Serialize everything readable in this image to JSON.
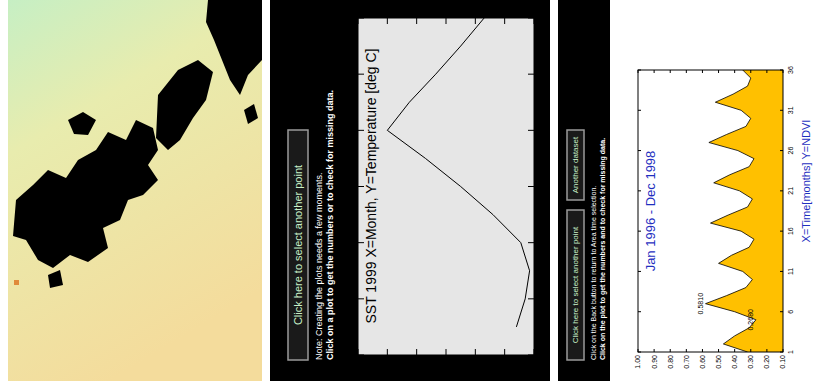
{
  "chart_data": [
    {
      "type": "line",
      "title": "SST 1999 X=Month, Y=Temperature [deg C]",
      "x": [
        1,
        2,
        3,
        4,
        5,
        6,
        7,
        8,
        9,
        10,
        11,
        12
      ],
      "values": [
        17.2,
        16.6,
        16.3,
        16.9,
        18.8,
        21.0,
        23.4,
        26.0,
        24.5,
        22.7,
        21.0,
        19.4
      ],
      "color": "#000000",
      "xlim": [
        0,
        12
      ],
      "xticks": [
        0,
        2,
        4,
        6,
        8,
        10,
        12
      ],
      "ylim": [
        16,
        28
      ],
      "yticks": [
        16,
        18,
        20,
        22,
        24,
        26,
        28
      ]
    },
    {
      "type": "area",
      "title": "Jan 1996 - Dec 1998",
      "xlabel": "X=Time[months] Y=NDVI",
      "x": [
        1,
        2,
        3,
        4,
        5,
        6,
        7,
        8,
        9,
        10,
        11,
        12,
        13,
        14,
        15,
        16,
        17,
        18,
        19,
        20,
        21,
        22,
        23,
        24,
        25,
        26,
        27,
        28,
        29,
        30,
        31,
        32,
        33,
        34,
        35,
        36
      ],
      "values": [
        0.32,
        0.47,
        0.4,
        0.31,
        0.268,
        0.4,
        0.581,
        0.45,
        0.33,
        0.29,
        0.35,
        0.5,
        0.42,
        0.31,
        0.28,
        0.36,
        0.55,
        0.44,
        0.32,
        0.29,
        0.37,
        0.53,
        0.43,
        0.31,
        0.28,
        0.38,
        0.56,
        0.45,
        0.33,
        0.3,
        0.36,
        0.52,
        0.41,
        0.32,
        0.3,
        0.35
      ],
      "color": "#ffc000",
      "xlim": [
        1,
        36
      ],
      "xticks": [
        1,
        6,
        11,
        16,
        21,
        26,
        31,
        36
      ],
      "ylim": [
        0.1,
        1.0
      ],
      "yticks": [
        {
          "value": 0.1,
          "label": "0.10"
        },
        {
          "value": 0.2,
          "label": "0.20"
        },
        {
          "value": 0.3,
          "label": "0.30"
        },
        {
          "value": 0.4,
          "label": "0.40"
        },
        {
          "value": 0.5,
          "label": "0.50"
        },
        {
          "value": 0.6,
          "label": "0.60"
        },
        {
          "value": 0.7,
          "label": "0.70"
        },
        {
          "value": 0.8,
          "label": "0.80"
        },
        {
          "value": 0.9,
          "label": "0.90"
        },
        {
          "value": 1.0,
          "label": "1.00"
        }
      ],
      "annotations": [
        {
          "text": "0.5810",
          "x": 7,
          "y": 0.581
        },
        {
          "text": "0.2680",
          "x": 5,
          "y": 0.268
        }
      ]
    }
  ],
  "controls": {
    "sst": {
      "button": "Click here to select another point",
      "notes": [
        "Note: Creating the plots needs a few moments.",
        "Click on a plot to get the numbers or to check for missing data."
      ]
    },
    "ndvi": {
      "buttons": [
        "Click here to select another point",
        "Another dataset"
      ],
      "notes": [
        "Click on the Back button to return to Area time selection.",
        "Click on the plot to get the numbers and to check for missing data."
      ]
    }
  }
}
